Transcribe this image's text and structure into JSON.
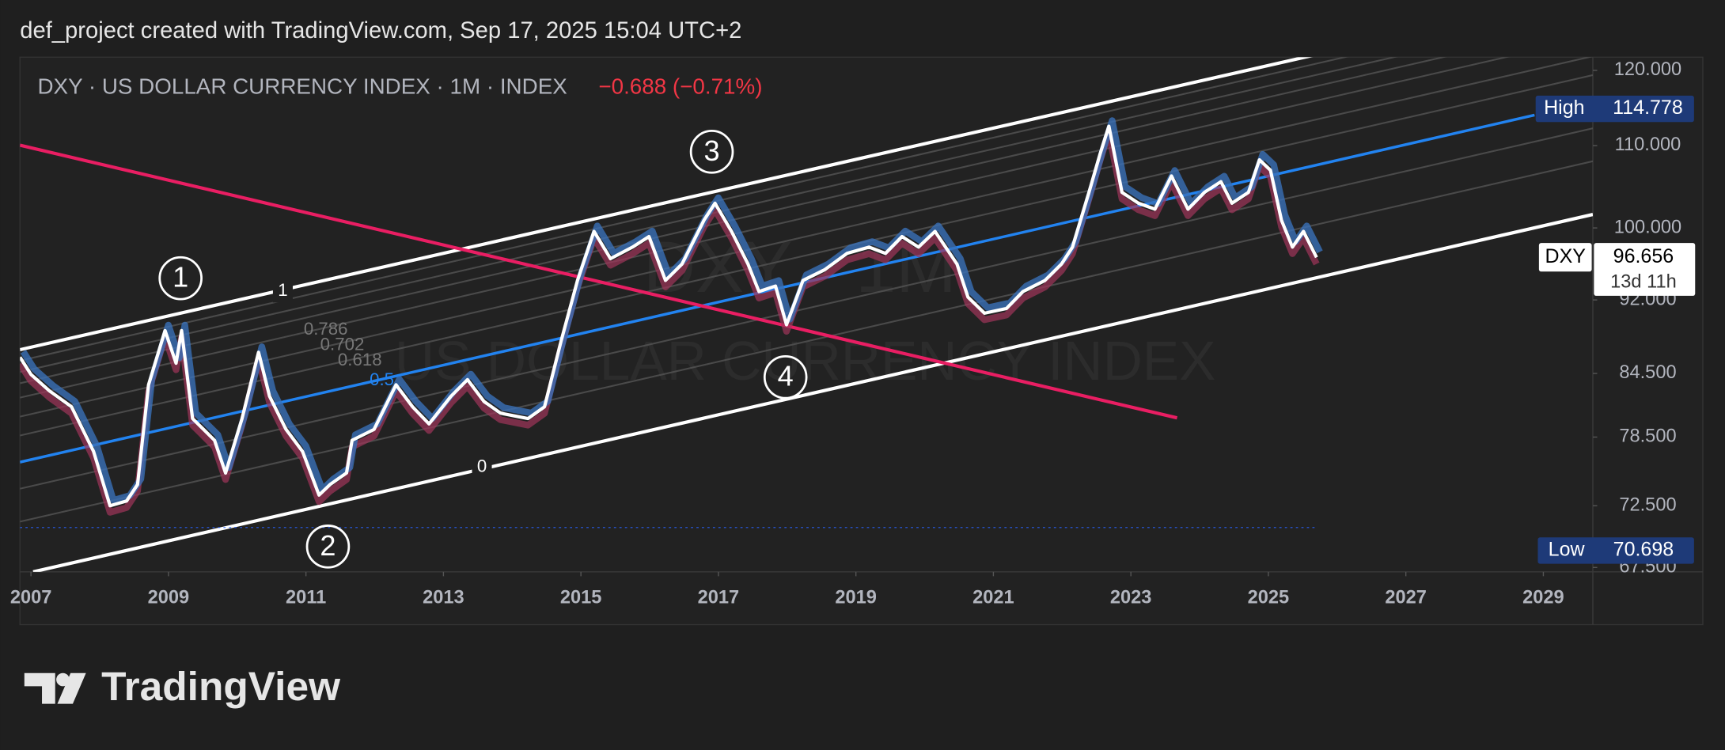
{
  "header": "def_project created with TradingView.com, Sep 17, 2025 15:04 UTC+2",
  "chart_data": {
    "type": "line",
    "title": "DXY · US DOLLAR CURRENCY INDEX · 1M · INDEX",
    "change": "−0.688 (−0.71%)",
    "watermark": [
      "DXY · 1M",
      "US DOLLAR CURRENCY INDEX"
    ],
    "x": [
      2006.84,
      2007.0,
      2007.27,
      2007.59,
      2007.91,
      2008.15,
      2008.39,
      2008.55,
      2008.71,
      2008.95,
      2009.11,
      2009.19,
      2009.35,
      2009.67,
      2009.83,
      2010.07,
      2010.31,
      2010.47,
      2010.71,
      2010.95,
      2011.19,
      2011.35,
      2011.59,
      2011.67,
      2011.99,
      2012.31,
      2012.55,
      2012.79,
      2013.11,
      2013.35,
      2013.59,
      2013.83,
      2014.23,
      2014.47,
      2014.71,
      2014.95,
      2015.19,
      2015.43,
      2015.75,
      2015.99,
      2016.23,
      2016.47,
      2016.79,
      2016.95,
      2017.19,
      2017.43,
      2017.59,
      2017.83,
      2017.99,
      2018.23,
      2018.55,
      2018.87,
      2019.19,
      2019.43,
      2019.67,
      2019.91,
      2020.15,
      2020.47,
      2020.63,
      2020.87,
      2021.19,
      2021.43,
      2021.75,
      2021.99,
      2022.15,
      2022.39,
      2022.55,
      2022.68,
      2022.87,
      2023.11,
      2023.35,
      2023.59,
      2023.83,
      2024.07,
      2024.31,
      2024.47,
      2024.71,
      2024.87,
      2025.03,
      2025.19,
      2025.35,
      2025.51,
      2025.7
    ],
    "series": [
      {
        "name": "DXY",
        "color": "#ffffff",
        "values": [
          86.1,
          84.4,
          82.8,
          81.3,
          77.2,
          72.5,
          72.9,
          74.3,
          83.4,
          88.8,
          85.5,
          88.8,
          80.2,
          78.2,
          75.3,
          80.2,
          86.6,
          82.3,
          79.2,
          77.2,
          73.4,
          74.3,
          75.3,
          78.2,
          79.2,
          83.4,
          81.3,
          79.7,
          82.3,
          83.9,
          81.8,
          80.7,
          80.2,
          81.3,
          87.7,
          94.1,
          99.6,
          96.5,
          97.8,
          99.0,
          94.1,
          95.9,
          100.9,
          102.9,
          99.6,
          95.9,
          92.9,
          93.5,
          89.4,
          94.1,
          95.3,
          97.1,
          97.8,
          97.1,
          99.0,
          97.8,
          99.6,
          95.9,
          92.3,
          90.6,
          91.1,
          92.9,
          94.1,
          95.9,
          97.8,
          104.2,
          108.9,
          112.5,
          104.2,
          102.9,
          102.2,
          106.2,
          102.2,
          104.2,
          105.5,
          102.9,
          104.2,
          108.2,
          106.9,
          100.9,
          97.8,
          99.6,
          96.656
        ]
      }
    ],
    "xlim": [
      2006.84,
      2029.72
    ],
    "xticks": [
      2007,
      2009,
      2011,
      2013,
      2015,
      2017,
      2019,
      2021,
      2023,
      2025,
      2027,
      2029
    ],
    "ylim": [
      67.16,
      121.85
    ],
    "log_scale": true,
    "yticks": [
      {
        "value": 120,
        "label": "120.000"
      },
      {
        "value": 110,
        "label": "110.000"
      },
      {
        "value": 100,
        "label": "100.000"
      },
      {
        "value": 92,
        "label": "92.000"
      },
      {
        "value": 84.5,
        "label": "84.500"
      },
      {
        "value": 78.5,
        "label": "78.500"
      },
      {
        "value": 72.5,
        "label": "72.500"
      },
      {
        "value": 67.5,
        "label": "67.500"
      }
    ],
    "high": {
      "label": "High",
      "value": 114.778
    },
    "low": {
      "label": "Low",
      "value": 70.698
    },
    "last": {
      "value": 96.656,
      "countdown": "13d 11h"
    },
    "annotations": {
      "channel_levels": [
        "1",
        "0.786",
        "0.702",
        "0.618",
        "0.5",
        "0"
      ],
      "waves": [
        "1",
        "2",
        "3",
        "4"
      ]
    }
  },
  "footer": "TradingView"
}
